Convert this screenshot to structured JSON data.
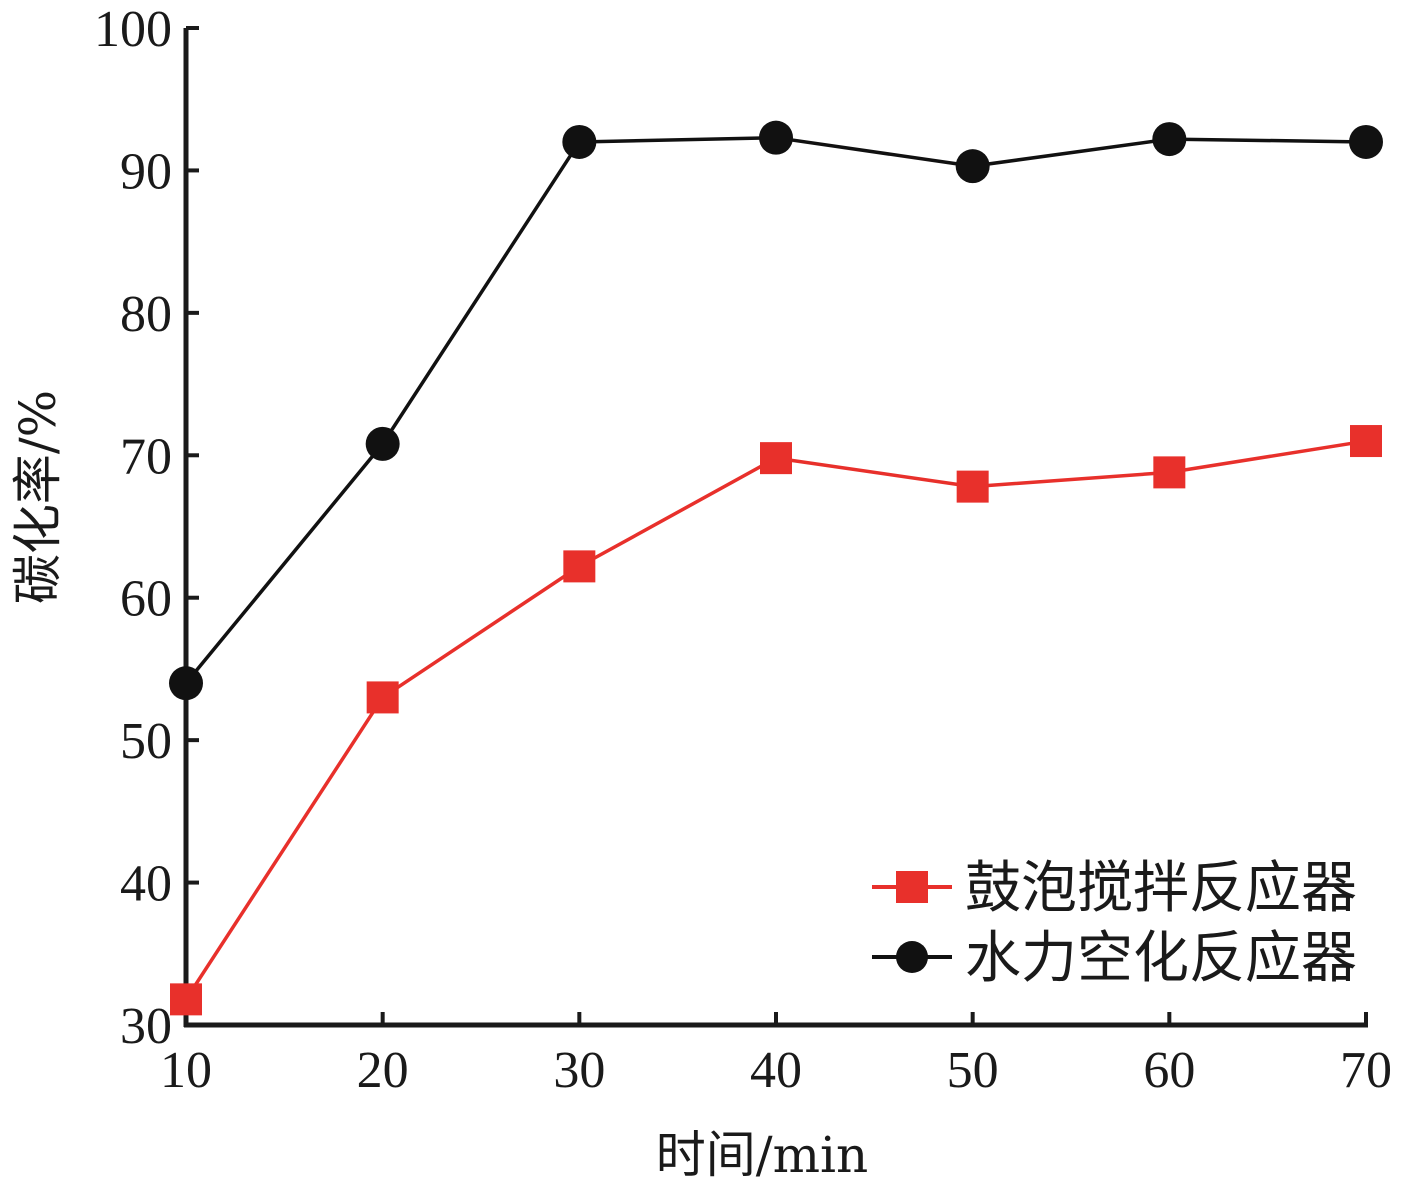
{
  "chart_data": {
    "type": "line",
    "x": [
      10,
      20,
      30,
      40,
      50,
      60,
      70
    ],
    "series": [
      {
        "name": "鼓泡搅拌反应器",
        "marker": "square",
        "color": "#e8302b",
        "values": [
          31.8,
          53.0,
          62.2,
          69.8,
          67.8,
          68.8,
          71.0
        ]
      },
      {
        "name": "水力空化反应器",
        "marker": "circle",
        "color": "#111111",
        "values": [
          54.0,
          70.8,
          92.0,
          92.3,
          90.3,
          92.2,
          92.0
        ]
      }
    ],
    "xlabel": "时间/min",
    "ylabel": "碳化率/%",
    "xlim": [
      10,
      70
    ],
    "ylim": [
      30,
      100
    ],
    "xticks": [
      "10",
      "20",
      "30",
      "40",
      "50",
      "60",
      "70"
    ],
    "yticks": [
      "30",
      "40",
      "50",
      "60",
      "70",
      "80",
      "90",
      "100"
    ],
    "grid": false,
    "legend_position": "bottom-right"
  }
}
